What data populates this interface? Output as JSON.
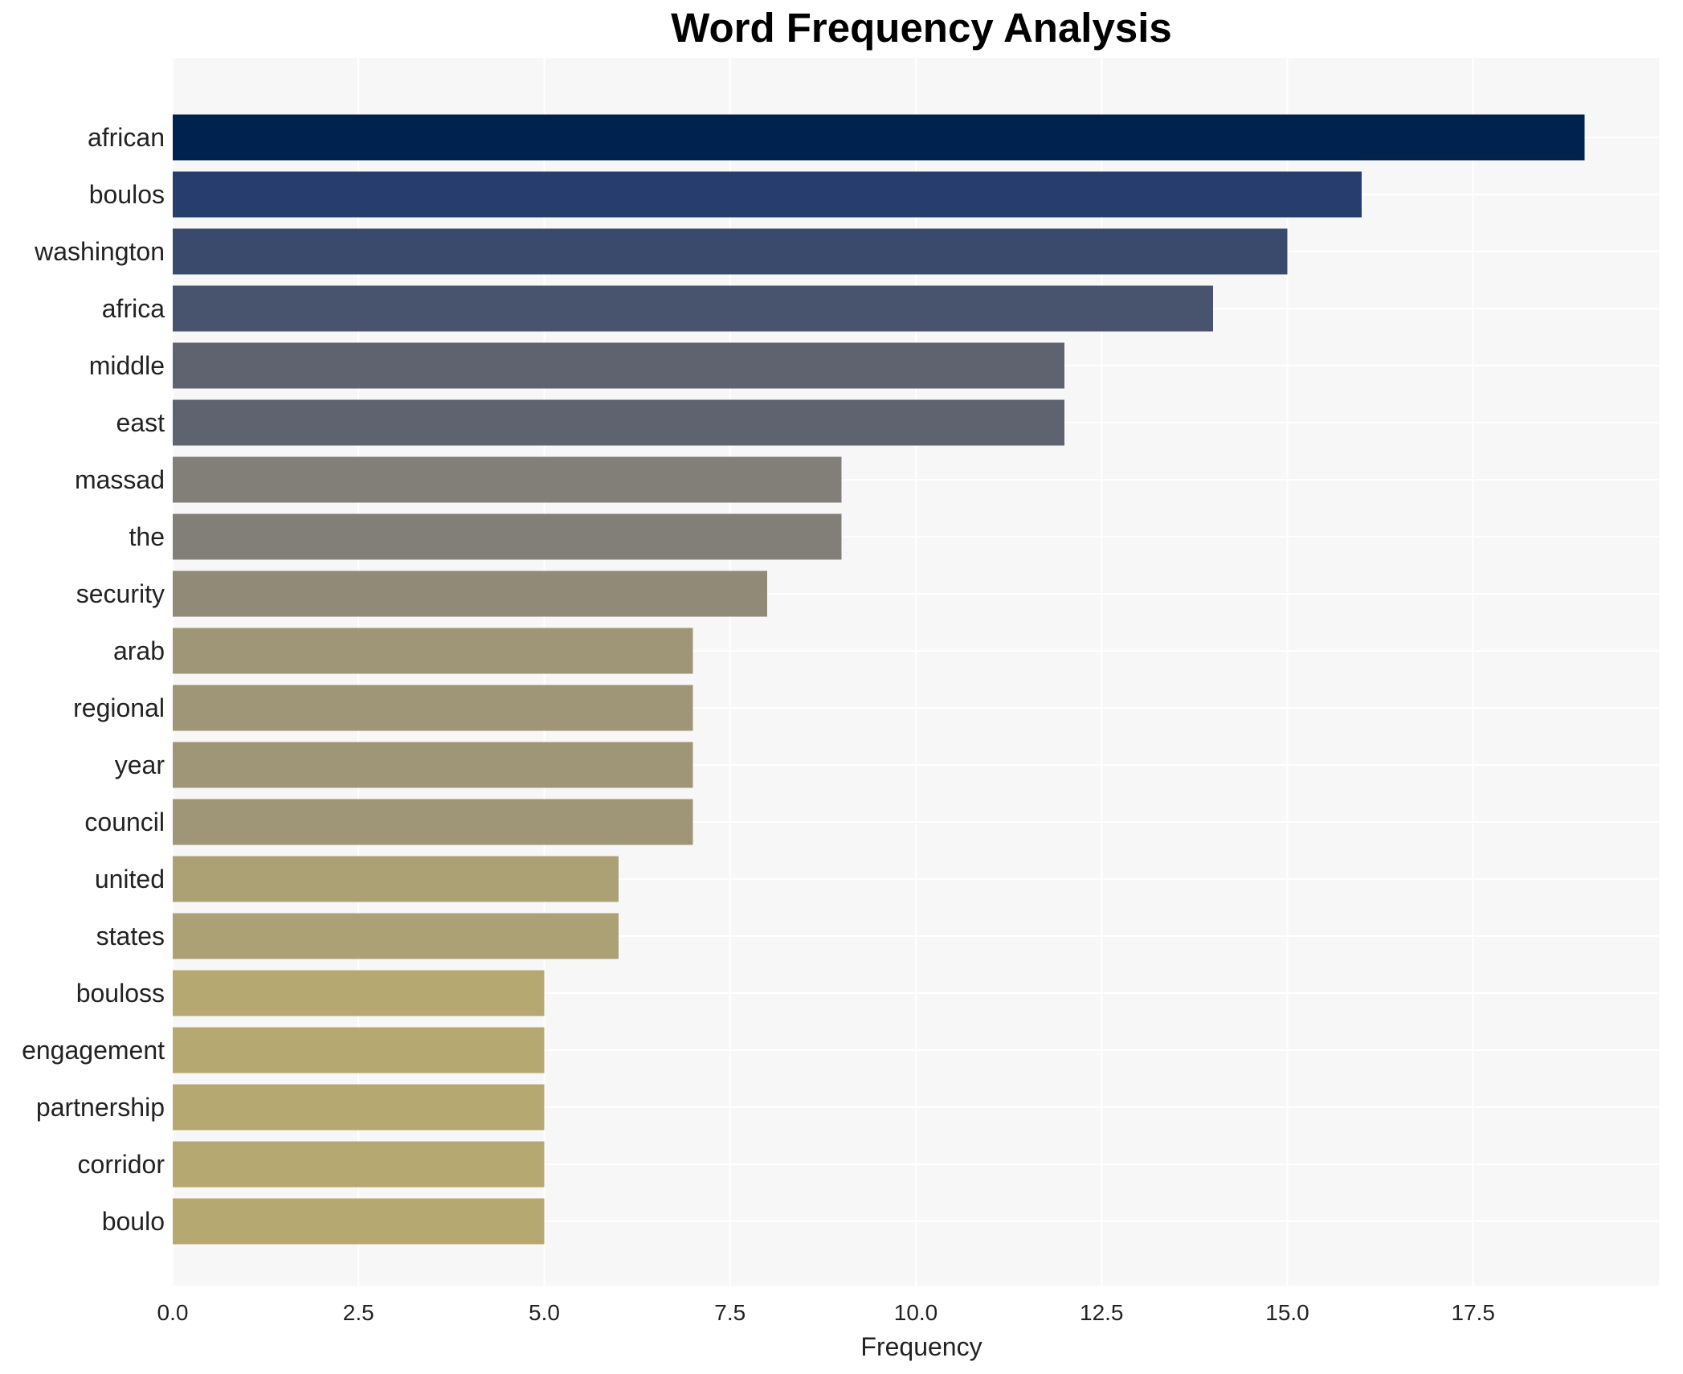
{
  "chart_data": {
    "type": "bar",
    "orientation": "horizontal",
    "title": "Word Frequency Analysis",
    "xlabel": "Frequency",
    "ylabel": "",
    "xlim": [
      0,
      20
    ],
    "x_ticks": [
      0,
      2.5,
      5,
      7.5,
      10,
      12.5,
      15,
      17.5
    ],
    "x_tick_labels": [
      "0.0",
      "2.5",
      "5.0",
      "7.5",
      "10.0",
      "12.5",
      "15.0",
      "17.5"
    ],
    "grid": true,
    "legend": "none",
    "categories": [
      "african",
      "boulos",
      "washington",
      "africa",
      "middle",
      "east",
      "massad",
      "the",
      "security",
      "arab",
      "regional",
      "year",
      "council",
      "united",
      "states",
      "bouloss",
      "engagement",
      "partnership",
      "corridor",
      "boulo"
    ],
    "values": [
      19,
      16,
      15,
      14,
      12,
      12,
      9,
      9,
      8,
      7,
      7,
      7,
      7,
      6,
      6,
      5,
      5,
      5,
      5,
      5
    ],
    "colors": [
      "#00224e",
      "#273d6d",
      "#3a4a6c",
      "#48536d",
      "#5f6370",
      "#5f6370",
      "#827f78",
      "#827f78",
      "#908a77",
      "#9e9676",
      "#9e9676",
      "#9e9676",
      "#9e9676",
      "#aba174",
      "#aba174",
      "#b6a871",
      "#b6a871",
      "#b6a871",
      "#b6a871",
      "#b6a871"
    ],
    "plot_background": "#f7f7f7",
    "grid_color": "#ffffff"
  }
}
